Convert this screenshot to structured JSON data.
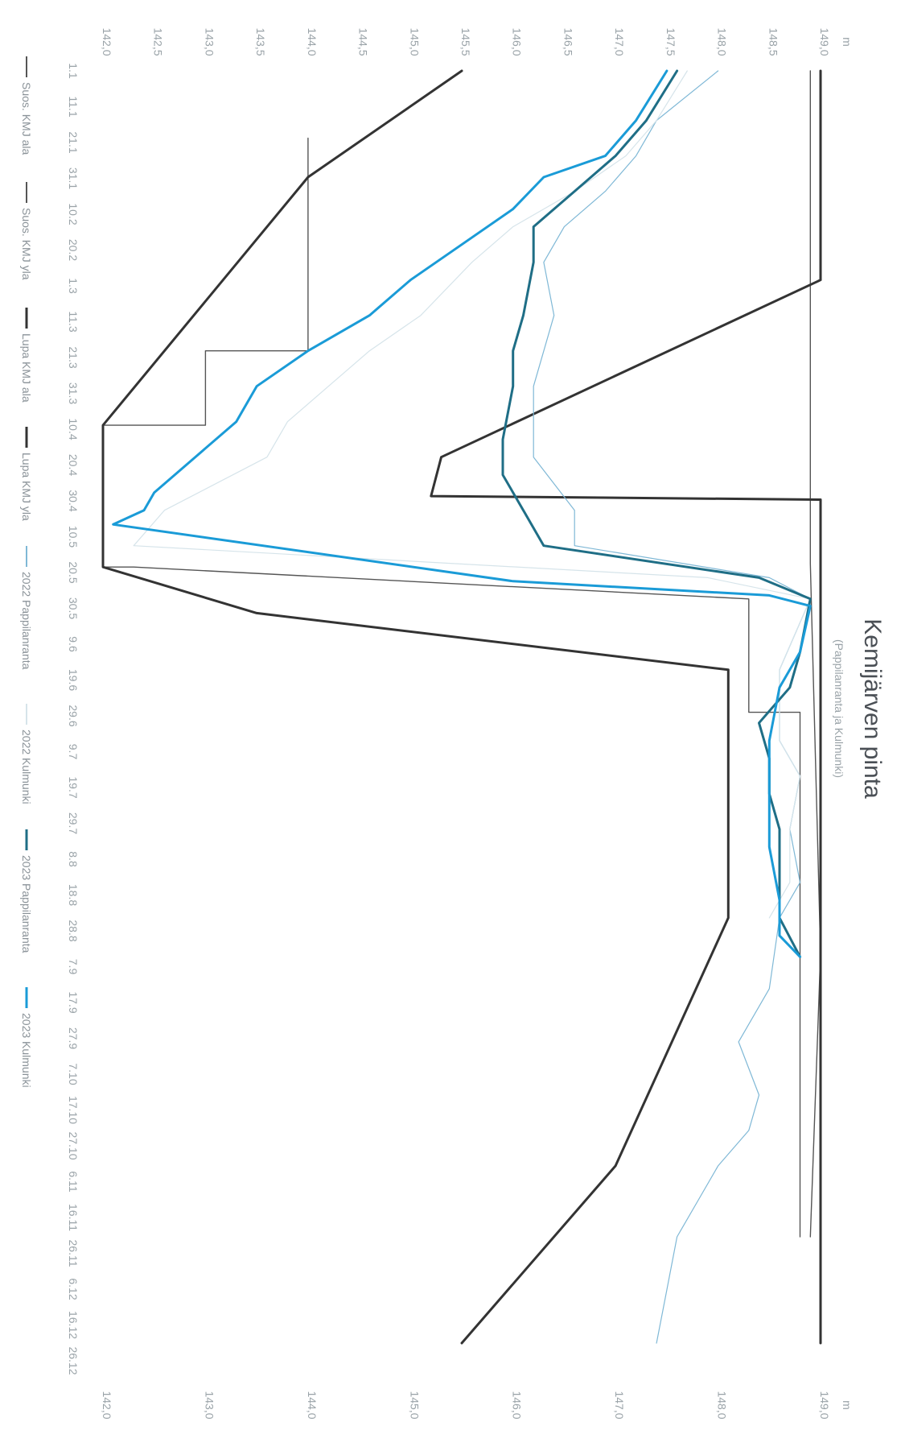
{
  "chart_data": {
    "type": "line",
    "title": "Kemijärven pinta",
    "subtitle": "(Pappilanranta ja Kulmunki)",
    "ylabel": "m",
    "ylim": [
      142.0,
      149.0
    ],
    "y_ticks_top": [
      "142,0",
      "142,5",
      "143,0",
      "143,5",
      "144,0",
      "144,5",
      "145,0",
      "145,5",
      "146,0",
      "146,5",
      "147,0",
      "147,5",
      "148,0",
      "148,5",
      "149,0"
    ],
    "y_ticks_bottom": [
      "142,0",
      "143,0",
      "144,0",
      "145,0",
      "146,0",
      "147,0",
      "148,0",
      "149,0"
    ],
    "x_categories": [
      "1.1",
      "11.1",
      "21.1",
      "31.1",
      "10.2",
      "20.2",
      "1.3",
      "11.3",
      "21.3",
      "31.3",
      "10.4",
      "20.4",
      "30.4",
      "10.5",
      "20.5",
      "30.5",
      "9.6",
      "19.6",
      "29.6",
      "9.7",
      "19.7",
      "29.7",
      "8.8",
      "18.8",
      "28.8",
      "7.9",
      "17.9",
      "27.9",
      "7.10",
      "17.10",
      "27.10",
      "6.11",
      "16.11",
      "26.11",
      "6.12",
      "16.12",
      "26.12"
    ],
    "series": [
      {
        "name": "Suos. KMJ ala",
        "color": "#555555",
        "width": 1.4,
        "values": [
          [
            1,
            null
          ],
          [
            20,
            144.0
          ],
          [
            31,
            144.0
          ],
          [
            80,
            144.0
          ],
          [
            80,
            143.0
          ],
          [
            101,
            143.0
          ],
          [
            101,
            142.0
          ],
          [
            141,
            142.0
          ],
          [
            141,
            142.3
          ],
          [
            150,
            148.3
          ],
          [
            182,
            148.3
          ],
          [
            182,
            148.8
          ],
          [
            240,
            148.8
          ],
          [
            240,
            148.8
          ],
          [
            330,
            148.8
          ],
          [
            330,
            148.8
          ]
        ]
      },
      {
        "name": "Suos. KMJ yla",
        "color": "#555555",
        "width": 1.4,
        "values": [
          [
            1,
            148.9
          ],
          [
            31,
            148.9
          ],
          [
            60,
            148.9
          ],
          [
            120,
            148.9
          ],
          [
            140,
            148.9
          ],
          [
            250,
            149.0
          ],
          [
            330,
            148.9
          ]
        ]
      },
      {
        "name": "Lupa KMJ ala",
        "color": "#333333",
        "width": 3,
        "values": [
          [
            1,
            145.5
          ],
          [
            31,
            144.0
          ],
          [
            101,
            142.0
          ],
          [
            141,
            142.0
          ],
          [
            154,
            143.5
          ],
          [
            170,
            148.1
          ],
          [
            240,
            148.1
          ],
          [
            310,
            147.0
          ],
          [
            360,
            145.5
          ]
        ]
      },
      {
        "name": "Lupa KMJ yla",
        "color": "#333333",
        "width": 3,
        "values": [
          [
            1,
            149.0
          ],
          [
            60,
            149.0
          ],
          [
            110,
            145.3
          ],
          [
            121,
            145.2
          ],
          [
            122,
            149.0
          ],
          [
            360,
            149.0
          ]
        ]
      },
      {
        "name": "2022 Pappilanranta",
        "color": "#7fb8d6",
        "width": 1.2,
        "values": [
          [
            1,
            148.0
          ],
          [
            15,
            147.4
          ],
          [
            25,
            147.2
          ],
          [
            35,
            146.9
          ],
          [
            45,
            146.5
          ],
          [
            55,
            146.3
          ],
          [
            70,
            146.4
          ],
          [
            90,
            146.2
          ],
          [
            110,
            146.2
          ],
          [
            125,
            146.6
          ],
          [
            135,
            146.6
          ],
          [
            144,
            148.5
          ],
          [
            150,
            148.9
          ],
          [
            170,
            148.6
          ],
          [
            190,
            148.6
          ],
          [
            200,
            148.8
          ],
          [
            215,
            148.7
          ],
          [
            230,
            148.8
          ],
          [
            240,
            148.6
          ],
          [
            260,
            148.5
          ],
          [
            275,
            148.2
          ],
          [
            290,
            148.4
          ],
          [
            300,
            148.3
          ],
          [
            310,
            148.0
          ],
          [
            320,
            147.8
          ],
          [
            330,
            147.6
          ],
          [
            345,
            147.5
          ],
          [
            360,
            147.4
          ]
        ]
      },
      {
        "name": "2022 Kulmunki",
        "color": "#d6e4ea",
        "width": 1.2,
        "values": [
          [
            1,
            147.7
          ],
          [
            15,
            147.4
          ],
          [
            25,
            147.1
          ],
          [
            35,
            146.6
          ],
          [
            45,
            146.0
          ],
          [
            55,
            145.6
          ],
          [
            70,
            145.1
          ],
          [
            80,
            144.6
          ],
          [
            90,
            144.2
          ],
          [
            100,
            143.8
          ],
          [
            110,
            143.6
          ],
          [
            125,
            142.6
          ],
          [
            135,
            142.3
          ],
          [
            144,
            147.9
          ],
          [
            150,
            148.9
          ],
          [
            170,
            148.6
          ],
          [
            190,
            148.6
          ],
          [
            200,
            148.8
          ],
          [
            215,
            148.7
          ],
          [
            230,
            148.7
          ],
          [
            240,
            148.5
          ]
        ]
      },
      {
        "name": "2023 Pappilanranta",
        "color": "#1f6e86",
        "width": 3,
        "values": [
          [
            1,
            147.6
          ],
          [
            15,
            147.3
          ],
          [
            25,
            147.0
          ],
          [
            35,
            146.6
          ],
          [
            45,
            146.2
          ],
          [
            55,
            146.2
          ],
          [
            70,
            146.1
          ],
          [
            80,
            146.0
          ],
          [
            90,
            146.0
          ],
          [
            105,
            145.9
          ],
          [
            115,
            145.9
          ],
          [
            125,
            146.1
          ],
          [
            135,
            146.3
          ],
          [
            144,
            148.4
          ],
          [
            150,
            148.9
          ],
          [
            165,
            148.8
          ],
          [
            175,
            148.7
          ],
          [
            185,
            148.4
          ],
          [
            195,
            148.5
          ],
          [
            205,
            148.5
          ],
          [
            215,
            148.6
          ],
          [
            228,
            148.6
          ],
          [
            240,
            148.6
          ],
          [
            251,
            148.8
          ]
        ]
      },
      {
        "name": "2023 Kulmunki",
        "color": "#1a9bd7",
        "width": 3,
        "values": [
          [
            1,
            147.5
          ],
          [
            15,
            147.2
          ],
          [
            25,
            146.9
          ],
          [
            31,
            146.3
          ],
          [
            40,
            146.0
          ],
          [
            50,
            145.5
          ],
          [
            60,
            145.0
          ],
          [
            70,
            144.6
          ],
          [
            80,
            144.0
          ],
          [
            90,
            143.5
          ],
          [
            100,
            143.3
          ],
          [
            110,
            142.9
          ],
          [
            120,
            142.5
          ],
          [
            125,
            142.4
          ],
          [
            129,
            142.1
          ],
          [
            145,
            146.0
          ],
          [
            149,
            148.5
          ],
          [
            152,
            148.9
          ],
          [
            165,
            148.8
          ],
          [
            175,
            148.6
          ],
          [
            190,
            148.5
          ],
          [
            205,
            148.5
          ],
          [
            220,
            148.5
          ],
          [
            235,
            148.6
          ],
          [
            245,
            148.6
          ],
          [
            251,
            148.8
          ]
        ]
      }
    ]
  }
}
